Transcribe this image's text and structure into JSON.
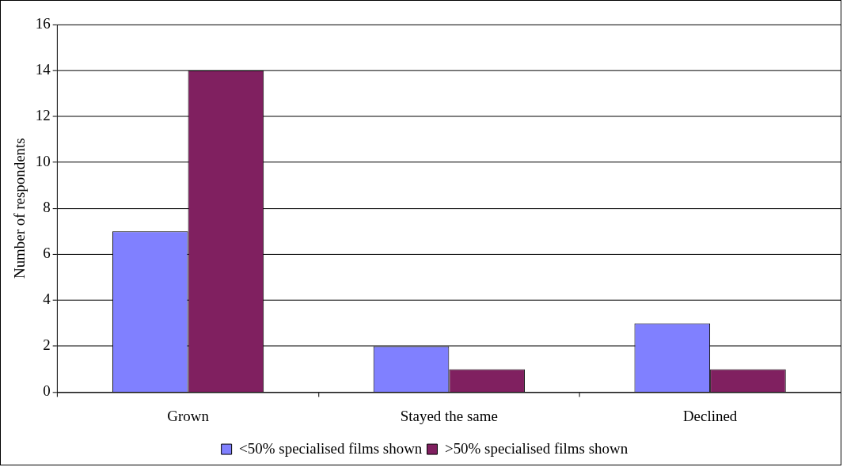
{
  "chart_data": {
    "type": "bar",
    "ylabel": "Number of respondents",
    "categories": [
      "Grown",
      "Stayed the same",
      "Declined"
    ],
    "series": [
      {
        "name": "<50% specialised films shown",
        "color": "#8080ff",
        "values": [
          7,
          2,
          3
        ]
      },
      {
        "name": ">50% specialised films shown",
        "color": "#802060",
        "values": [
          14,
          1,
          1
        ]
      }
    ],
    "ylim": [
      0,
      16
    ],
    "yticks": [
      0,
      2,
      4,
      6,
      8,
      10,
      12,
      14,
      16
    ],
    "grid": "y",
    "legend": "bottom"
  }
}
